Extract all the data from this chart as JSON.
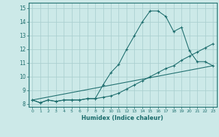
{
  "xlabel": "Humidex (Indice chaleur)",
  "x_ticks": [
    0,
    1,
    2,
    3,
    4,
    5,
    6,
    7,
    8,
    9,
    10,
    11,
    12,
    13,
    14,
    15,
    16,
    17,
    18,
    19,
    20,
    21,
    22,
    23
  ],
  "xlim": [
    -0.5,
    23.5
  ],
  "ylim": [
    7.8,
    15.4
  ],
  "y_ticks": [
    8,
    9,
    10,
    11,
    12,
    13,
    14,
    15
  ],
  "background_color": "#cce9e8",
  "grid_color": "#aacfcf",
  "line_color": "#1a6b6b",
  "series1_x": [
    0,
    1,
    2,
    3,
    4,
    5,
    6,
    7,
    8,
    9,
    10,
    11,
    12,
    13,
    14,
    15,
    16,
    17,
    18,
    19,
    20,
    21,
    22,
    23
  ],
  "series1_y": [
    8.3,
    8.1,
    8.3,
    8.2,
    8.3,
    8.3,
    8.3,
    8.4,
    8.4,
    9.4,
    10.3,
    10.9,
    12.0,
    13.0,
    14.0,
    14.8,
    14.8,
    14.4,
    13.3,
    13.6,
    11.9,
    11.1,
    11.1,
    10.8
  ],
  "series2_x": [
    0,
    1,
    2,
    3,
    4,
    5,
    6,
    7,
    8,
    9,
    10,
    11,
    12,
    13,
    14,
    15,
    16,
    17,
    18,
    19,
    20,
    21,
    22,
    23
  ],
  "series2_y": [
    8.3,
    8.1,
    8.3,
    8.2,
    8.3,
    8.3,
    8.3,
    8.4,
    8.4,
    8.5,
    8.6,
    8.8,
    9.1,
    9.4,
    9.7,
    10.0,
    10.3,
    10.6,
    10.8,
    11.2,
    11.5,
    11.8,
    12.1,
    12.4
  ],
  "series3_x": [
    0,
    23
  ],
  "series3_y": [
    8.3,
    10.8
  ]
}
